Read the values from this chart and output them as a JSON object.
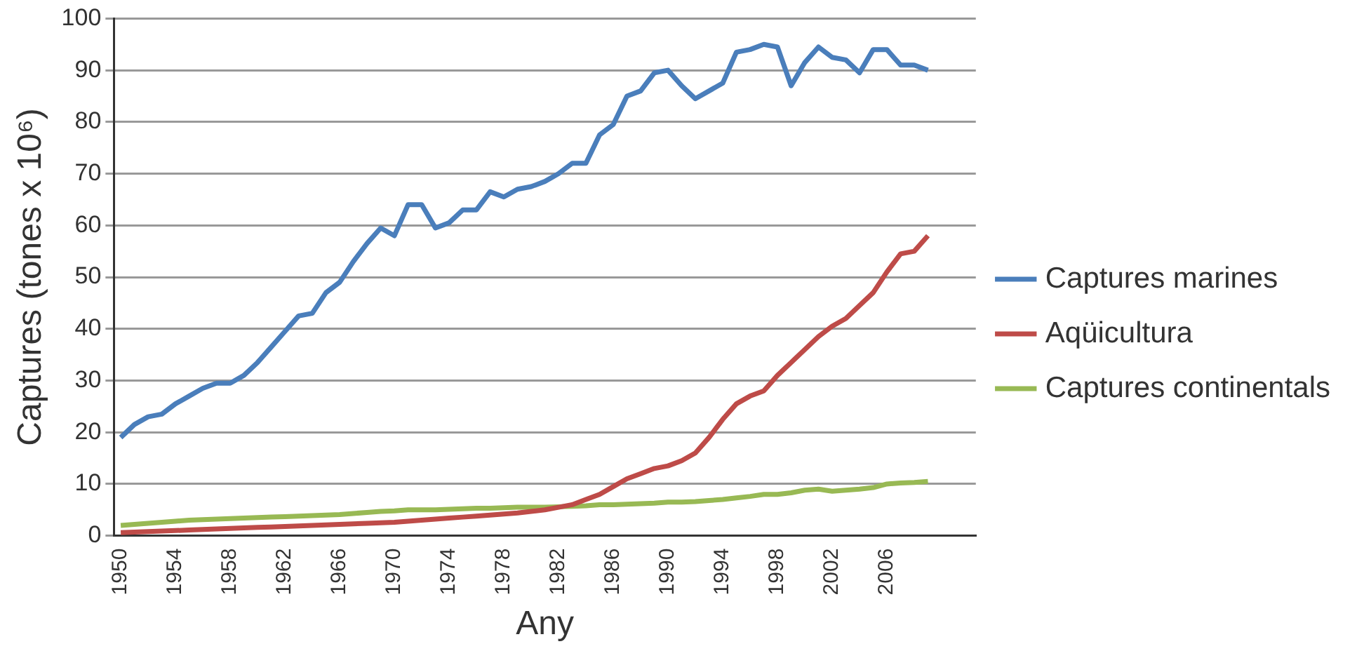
{
  "chart_data": {
    "type": "line",
    "xlabel": "Any",
    "ylabel": "Captures (tones x 10⁶)",
    "categories": [
      "1950",
      null,
      null,
      null,
      "1954",
      null,
      null,
      null,
      "1958",
      null,
      null,
      null,
      "1962",
      null,
      null,
      null,
      "1966",
      null,
      null,
      null,
      "1970",
      null,
      null,
      null,
      "1974",
      null,
      null,
      null,
      "1978",
      null,
      null,
      null,
      "1982",
      null,
      null,
      null,
      "1986",
      null,
      null,
      null,
      "1990",
      null,
      null,
      null,
      "1994",
      null,
      null,
      null,
      "1998",
      null,
      null,
      null,
      "2002",
      null,
      null,
      null,
      "2006",
      null,
      null,
      null,
      null,
      null,
      null
    ],
    "ylim": [
      0,
      100
    ],
    "yticks": [
      0,
      10,
      20,
      30,
      40,
      50,
      60,
      70,
      80,
      90,
      100
    ],
    "grid": "y",
    "legend": "right",
    "marker": "none",
    "line_style": "solid",
    "series": [
      {
        "name": "Captures marines",
        "color": "#4a7ebb",
        "values": [
          19,
          21.5,
          23,
          23.5,
          25.5,
          27,
          28.5,
          29.5,
          29.5,
          31,
          33.5,
          36.5,
          39.5,
          42.5,
          43,
          47,
          49,
          53,
          56.5,
          59.5,
          58,
          64,
          64,
          59.5,
          60.5,
          63,
          63,
          66.5,
          65.5,
          67,
          67.5,
          68.5,
          70,
          72,
          72,
          77.5,
          79.5,
          85,
          86,
          89.5,
          90,
          87,
          84.5,
          86,
          87.5,
          93.5,
          94,
          95,
          94.5,
          87,
          91.5,
          94.5,
          92.5,
          92,
          89.5,
          94,
          94,
          91,
          91,
          90,
          null,
          null,
          null
        ]
      },
      {
        "name": "Aqüicultura",
        "color": "#be4b48",
        "values": [
          0.6,
          0.7,
          0.8,
          0.9,
          1,
          1.1,
          1.2,
          1.3,
          1.4,
          1.5,
          1.6,
          1.7,
          1.8,
          1.9,
          2,
          2.1,
          2.2,
          2.3,
          2.4,
          2.5,
          2.6,
          2.8,
          3,
          3.2,
          3.4,
          3.6,
          3.8,
          4,
          4.2,
          4.4,
          4.7,
          5,
          5.5,
          6,
          7,
          8,
          9.5,
          11,
          12,
          13,
          13.5,
          14.5,
          16,
          19,
          22.5,
          25.5,
          27,
          28,
          31,
          33.5,
          36,
          38.5,
          40.5,
          42,
          44.5,
          47,
          51,
          54.5,
          55,
          58,
          null,
          null,
          null
        ]
      },
      {
        "name": "Captures continentals",
        "color": "#98b954",
        "values": [
          2,
          2.2,
          2.4,
          2.6,
          2.8,
          3,
          3.1,
          3.2,
          3.3,
          3.4,
          3.5,
          3.6,
          3.7,
          3.8,
          3.9,
          4,
          4.1,
          4.3,
          4.5,
          4.7,
          4.8,
          5,
          5,
          5,
          5.1,
          5.2,
          5.3,
          5.3,
          5.4,
          5.5,
          5.5,
          5.5,
          5.6,
          5.7,
          5.8,
          6,
          6,
          6.1,
          6.2,
          6.3,
          6.5,
          6.5,
          6.6,
          6.8,
          7,
          7.3,
          7.6,
          8,
          8,
          8.3,
          8.8,
          9,
          8.6,
          8.8,
          9,
          9.3,
          10,
          10.2,
          10.3,
          10.5,
          null,
          null,
          null
        ]
      }
    ]
  }
}
